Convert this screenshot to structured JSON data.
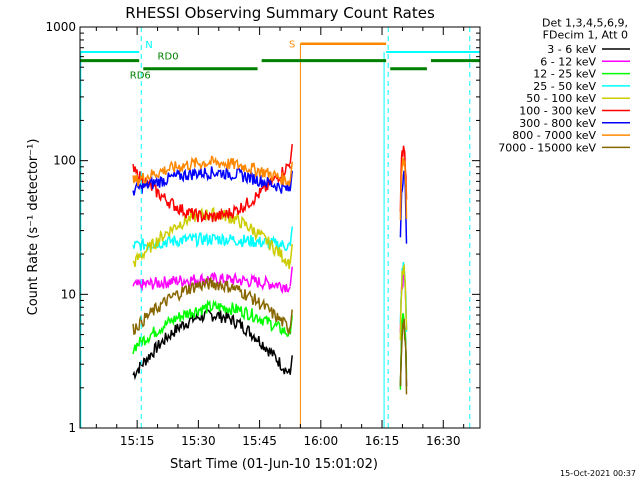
{
  "chart_data": {
    "type": "line",
    "title": "RHESSI Observing Summary Count Rates",
    "xlabel": "Start Time (01-Jun-10 15:01:02)",
    "ylabel": "Count Rate (s⁻¹ detector⁻¹)",
    "y_scale": "log",
    "ylim": [
      1,
      1000
    ],
    "xlim_minutes": [
      1,
      42
    ],
    "x_ticks": [
      "15:15",
      "15:30",
      "15:45",
      "16:00",
      "16:15",
      "16:30"
    ],
    "x_tick_minutes": [
      15,
      30,
      45,
      60,
      75,
      90
    ],
    "y_ticks": [
      "1",
      "10",
      "100",
      "1000"
    ],
    "y_tick_values": [
      1,
      10,
      100,
      1000
    ],
    "legend_header": [
      "Det 1,3,4,5,6,9,",
      "FDecim 1, Att 0"
    ],
    "series": [
      {
        "name": "3 - 6 keV",
        "color": "#000000",
        "seg1_start": 2.5,
        "seg1_peak": 7.0,
        "seg1_end": 2.5,
        "seg2_peak": 6.0
      },
      {
        "name": "6 - 12 keV",
        "color": "#ff00ff",
        "seg1_start": 11.5,
        "seg1_peak": 13.0,
        "seg1_end": 11.5,
        "seg2_peak": 14.0
      },
      {
        "name": "12 - 25 keV",
        "color": "#00ff00",
        "seg1_start": 4.0,
        "seg1_peak": 8.0,
        "seg1_end": 5.0,
        "seg2_peak": 6.5
      },
      {
        "name": "25 - 50 keV",
        "color": "#00ffff",
        "seg1_start": 23.0,
        "seg1_peak": 26.0,
        "seg1_end": 23.0,
        "seg2_peak": 16.0
      },
      {
        "name": "50 - 100 keV",
        "color": "#cccc00",
        "seg1_start": 17.0,
        "seg1_peak": 40.0,
        "seg1_end": 17.0,
        "seg2_peak": 15.0
      },
      {
        "name": "100 - 300 keV",
        "color": "#ff0000",
        "seg1_start": 85.0,
        "seg1_peak": 38.0,
        "seg1_end": 95.0,
        "seg2_peak": 130.0
      },
      {
        "name": "300 - 800 keV",
        "color": "#0000ff",
        "seg1_start": 60.0,
        "seg1_peak": 82.0,
        "seg1_end": 60.0,
        "seg2_peak": 80.0
      },
      {
        "name": "800 - 7000 keV",
        "color": "#ff8800",
        "seg1_start": 70.0,
        "seg1_peak": 97.0,
        "seg1_end": 70.0,
        "seg2_peak": 110.0
      },
      {
        "name": "7000 - 15000 keV",
        "color": "#886600",
        "seg1_start": 5.5,
        "seg1_peak": 12.0,
        "seg1_end": 5.5,
        "seg2_peak": 6.0
      }
    ],
    "flags": {
      "night": {
        "label": "N",
        "color": "#00ffff",
        "level": 650
      },
      "saa": {
        "label": "S",
        "color": "#ff8800",
        "level": 750
      },
      "decimation": {
        "labels": [
          "RD0",
          "RD6"
        ],
        "color": "#008000",
        "level": 560
      }
    },
    "footer_timestamp": "15-Oct-2021 00:37"
  }
}
